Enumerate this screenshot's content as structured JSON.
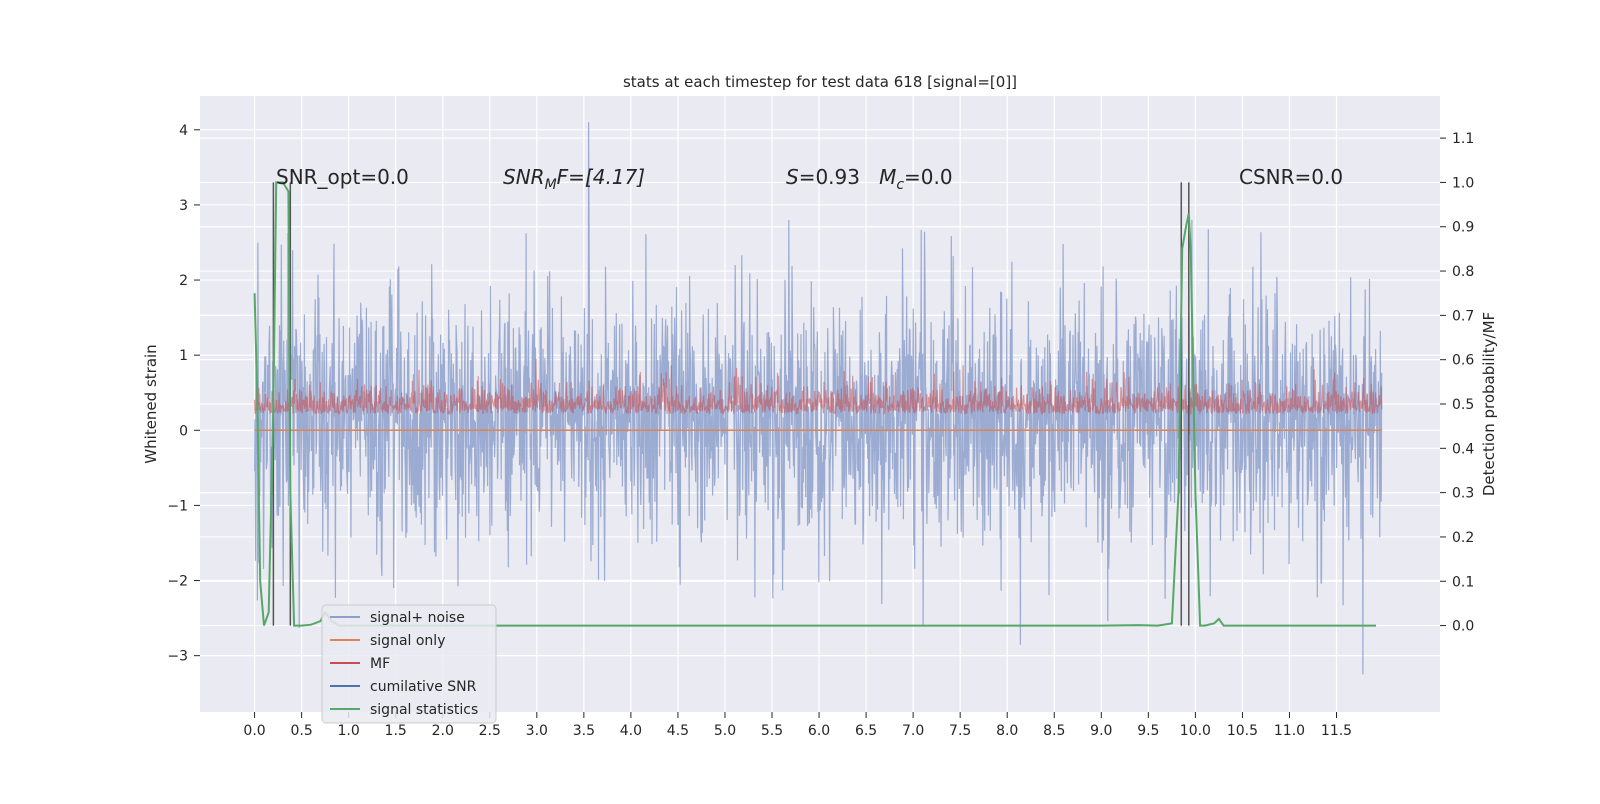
{
  "chart_data": {
    "type": "line",
    "title": "stats at each timestep for test data 618 [signal=[0]]",
    "ylabel": "Whitened strain",
    "y2label": "Detection probability/MF",
    "xlim": [
      -0.58,
      12.6
    ],
    "ylim": [
      -3.75,
      4.45
    ],
    "y2lim": [
      -0.195,
      1.195
    ],
    "xticks": [
      "0.0",
      "0.5",
      "1.0",
      "1.5",
      "2.0",
      "2.5",
      "3.0",
      "3.5",
      "4.0",
      "4.5",
      "5.0",
      "5.5",
      "6.0",
      "6.5",
      "7.0",
      "7.5",
      "8.0",
      "8.5",
      "9.0",
      "9.5",
      "10.0",
      "10.5",
      "11.0",
      "11.5"
    ],
    "yticks": [
      "4",
      "3",
      "2",
      "1",
      "0",
      "−1",
      "−2",
      "−3"
    ],
    "y2ticks": [
      "0.0",
      "0.1",
      "0.2",
      "0.3",
      "0.4",
      "0.5",
      "0.6",
      "0.7",
      "0.8",
      "0.9",
      "1.0",
      "1.1"
    ],
    "annotations": {
      "snr_opt": "SNR_opt=0.0",
      "snr_mf_main": "SNR",
      "snr_mf_sub": "M",
      "snr_mf_rest": "F=[4.17]",
      "s_main": "S",
      "s_rest": "=0.93   ",
      "mc_main": "M",
      "mc_sub": "c",
      "mc_rest": "=0.0",
      "csnr": "CSNR=0.0"
    },
    "legend_position": "lower-left",
    "series": [
      {
        "name": "signal+ noise",
        "color": "#8da0cb",
        "range_x": [
          0.0,
          11.98
        ],
        "envelope_y": [
          -2.6,
          2.5
        ],
        "peak_y_max": 4.1,
        "peak_x_max": 3.55,
        "peak_y_min": -3.25,
        "peak_x_min": 11.78
      },
      {
        "name": "signal only",
        "color": "#dd8452",
        "constant_y": 0.0,
        "range_x": [
          0.0,
          11.98
        ]
      },
      {
        "name": "MF",
        "color": "#c44e52",
        "range_x": [
          0.0,
          11.98
        ],
        "band_y": [
          0.0,
          0.95
        ]
      },
      {
        "name": "cumilative SNR",
        "color": "#4c72b0"
      },
      {
        "name": "signal statistics",
        "color": "#55a868",
        "x": [
          0.0,
          0.03,
          0.06,
          0.1,
          0.15,
          0.2,
          0.23,
          0.26,
          0.3,
          0.36,
          0.38,
          0.42,
          0.5,
          0.6,
          0.7,
          0.75,
          0.82,
          0.9,
          1.0,
          2.0,
          3.0,
          4.0,
          5.0,
          6.0,
          7.0,
          8.0,
          9.0,
          9.4,
          9.6,
          9.75,
          9.82,
          9.86,
          9.9,
          9.93,
          9.95,
          10.0,
          10.05,
          10.1,
          10.2,
          10.25,
          10.3,
          10.5,
          11.0,
          11.5,
          11.92
        ],
        "y": [
          0.75,
          0.5,
          0.1,
          0.0,
          0.03,
          0.5,
          1.0,
          1.0,
          1.0,
          0.98,
          0.3,
          0.0,
          0.0,
          0.002,
          0.01,
          0.03,
          0.01,
          0.0,
          0.0,
          0.0,
          0.0,
          0.0,
          0.0,
          0.0,
          0.0,
          0.0,
          0.0,
          0.001,
          0.0,
          0.005,
          0.3,
          0.85,
          0.9,
          0.93,
          0.85,
          0.3,
          0.0,
          0.0,
          0.005,
          0.015,
          0.0,
          0.0,
          0.0,
          0.0,
          0.0
        ]
      }
    ],
    "vlines_x": [
      0.2,
      0.38,
      9.85,
      9.93
    ]
  }
}
